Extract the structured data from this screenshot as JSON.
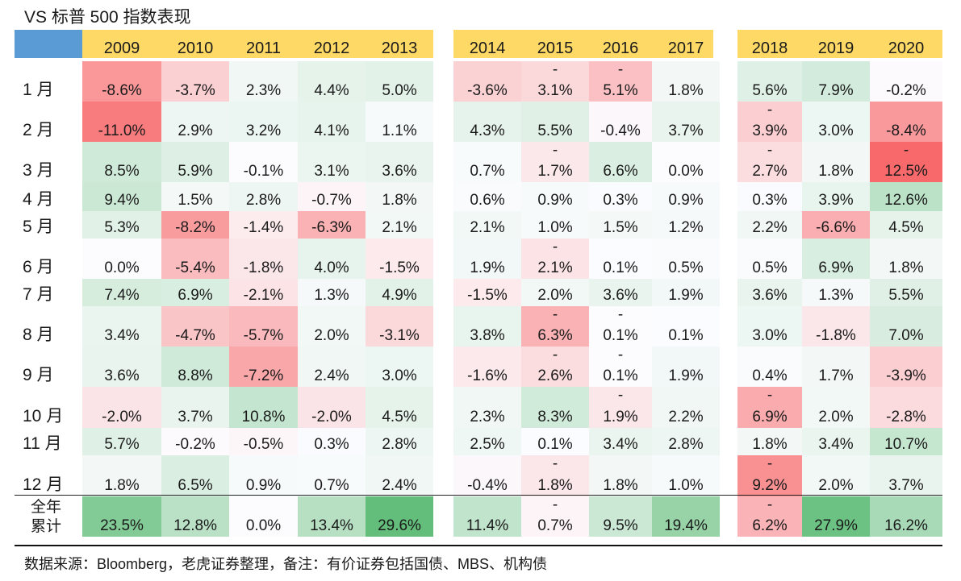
{
  "title": "VS  标普 500 指数表现",
  "source": "数据来源：Bloomberg，老虎证券整理，备注：有价证券包括国债、MBS、机构债",
  "chart_data": {
    "type": "table",
    "title": "VS  标普 500 指数表现",
    "columns": [
      "2009",
      "2010",
      "2011",
      "2012",
      "2013",
      "2014",
      "2015",
      "2016",
      "2017",
      "2018",
      "2019",
      "2020"
    ],
    "column_groups": [
      [
        0,
        1,
        2,
        3,
        4
      ],
      [
        5,
        6,
        7,
        8
      ],
      [
        9,
        10,
        11
      ]
    ],
    "rows": [
      {
        "label": "1 月",
        "values": [
          -8.6,
          -3.7,
          2.3,
          4.4,
          5.0,
          -3.6,
          -3.1,
          -5.1,
          1.8,
          5.6,
          7.9,
          -0.2
        ]
      },
      {
        "label": "2 月",
        "values": [
          -11.0,
          2.9,
          3.2,
          4.1,
          1.1,
          4.3,
          5.5,
          -0.4,
          3.7,
          -3.9,
          3.0,
          -8.4
        ]
      },
      {
        "label": "3 月",
        "values": [
          8.5,
          5.9,
          -0.1,
          3.1,
          3.6,
          0.7,
          -1.7,
          6.6,
          0.0,
          -2.7,
          1.8,
          -12.5
        ]
      },
      {
        "label": "4 月",
        "values": [
          9.4,
          1.5,
          2.8,
          -0.7,
          1.8,
          0.6,
          0.9,
          0.3,
          0.9,
          0.3,
          3.9,
          12.6
        ]
      },
      {
        "label": "5 月",
        "values": [
          5.3,
          -8.2,
          -1.4,
          -6.3,
          2.1,
          2.1,
          1.0,
          1.5,
          1.2,
          2.2,
          -6.6,
          4.5
        ]
      },
      {
        "label": "6 月",
        "values": [
          0.0,
          -5.4,
          -1.8,
          4.0,
          -1.5,
          1.9,
          -2.1,
          0.1,
          0.5,
          0.5,
          6.9,
          1.8
        ]
      },
      {
        "label": "7 月",
        "values": [
          7.4,
          6.9,
          -2.1,
          1.3,
          4.9,
          -1.5,
          2.0,
          3.6,
          1.9,
          3.6,
          1.3,
          5.5
        ]
      },
      {
        "label": "8 月",
        "values": [
          3.4,
          -4.7,
          -5.7,
          2.0,
          -3.1,
          3.8,
          -6.3,
          -0.1,
          0.1,
          3.0,
          -1.8,
          7.0
        ]
      },
      {
        "label": "9 月",
        "values": [
          3.6,
          8.8,
          -7.2,
          2.4,
          3.0,
          -1.6,
          -2.6,
          -0.1,
          1.9,
          0.4,
          1.7,
          -3.9
        ]
      },
      {
        "label": "10 月",
        "values": [
          -2.0,
          3.7,
          10.8,
          -2.0,
          4.5,
          2.3,
          8.3,
          -1.9,
          2.2,
          -6.9,
          2.0,
          -2.8
        ]
      },
      {
        "label": "11 月",
        "values": [
          5.7,
          -0.2,
          -0.5,
          0.3,
          2.8,
          2.5,
          0.1,
          3.4,
          2.8,
          1.8,
          3.4,
          10.7
        ]
      },
      {
        "label": "12 月",
        "values": [
          1.8,
          6.5,
          0.9,
          0.7,
          2.4,
          -0.4,
          -1.8,
          1.8,
          1.0,
          -9.2,
          2.0,
          3.7
        ]
      },
      {
        "label": "全年\n累计",
        "values": [
          23.5,
          12.8,
          0.0,
          13.4,
          29.6,
          11.4,
          -0.7,
          9.5,
          19.4,
          -6.2,
          27.9,
          16.2
        ]
      }
    ],
    "split_minus_cells": [
      [
        0,
        6
      ],
      [
        0,
        7
      ],
      [
        1,
        9
      ],
      [
        2,
        6
      ],
      [
        2,
        9
      ],
      [
        2,
        11
      ],
      [
        5,
        6
      ],
      [
        7,
        6
      ],
      [
        7,
        7
      ],
      [
        8,
        6
      ],
      [
        8,
        7
      ],
      [
        9,
        7
      ],
      [
        9,
        9
      ],
      [
        11,
        6
      ],
      [
        11,
        9
      ],
      [
        12,
        6
      ],
      [
        12,
        9
      ]
    ],
    "value_unit": "%",
    "colors": {
      "positive_max": "#63be7b",
      "negative_max": "#f8696b",
      "neutral": "#fcfcff",
      "header_year_bg": "#ffd966",
      "header_corner_bg": "#5b9bd5"
    }
  }
}
